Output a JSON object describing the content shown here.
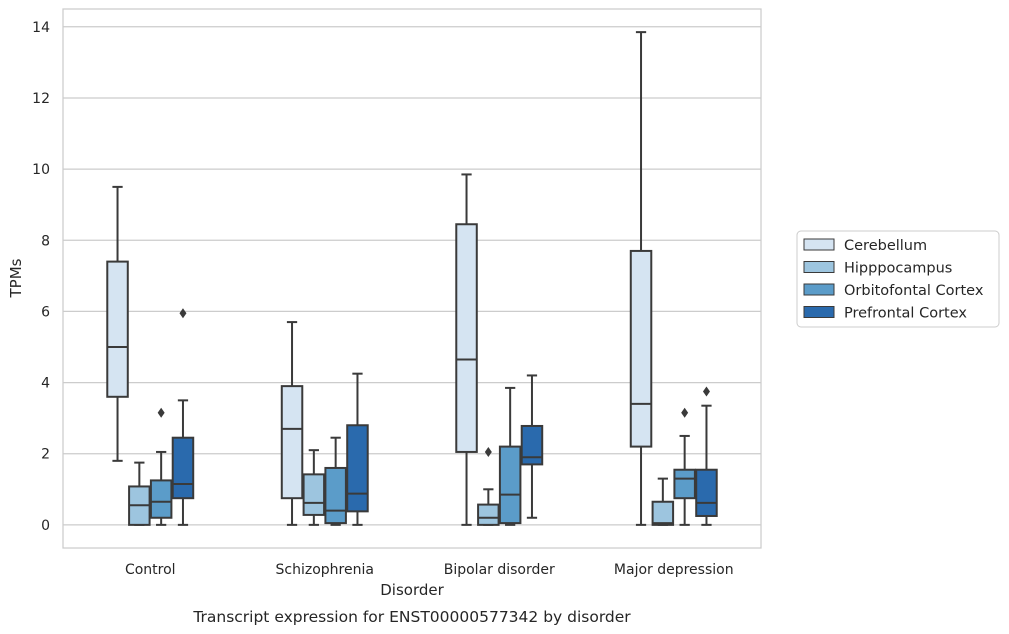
{
  "chart_data": {
    "type": "boxplot",
    "title": "",
    "caption": "Transcript expression for ENST00000577342 by disorder",
    "xlabel": "Disorder",
    "ylabel": "TPMs",
    "ylim": [
      -0.65,
      14.5
    ],
    "yticks": [
      0,
      2,
      4,
      6,
      8,
      10,
      12,
      14
    ],
    "grid": "horizontal",
    "legend_position": "right",
    "categories": [
      "Control",
      "Schizophrenia",
      "Bipolar disorder",
      "Major depression"
    ],
    "series": [
      {
        "name": "Cerebellum",
        "color": "#d5e4f2",
        "boxes": [
          {
            "whisker_low": 1.8,
            "q1": 3.6,
            "median": 5.0,
            "q3": 7.4,
            "whisker_high": 9.5,
            "outliers": []
          },
          {
            "whisker_low": 0.0,
            "q1": 0.75,
            "median": 2.7,
            "q3": 3.9,
            "whisker_high": 5.7,
            "outliers": []
          },
          {
            "whisker_low": 0.0,
            "q1": 2.05,
            "median": 4.65,
            "q3": 8.45,
            "whisker_high": 9.85,
            "outliers": []
          },
          {
            "whisker_low": 0.0,
            "q1": 2.2,
            "median": 3.4,
            "q3": 7.7,
            "whisker_high": 13.85,
            "outliers": []
          }
        ]
      },
      {
        "name": "Hipppocampus",
        "color": "#9dc5df",
        "boxes": [
          {
            "whisker_low": 0.0,
            "q1": 0.0,
            "median": 0.55,
            "q3": 1.08,
            "whisker_high": 1.75,
            "outliers": []
          },
          {
            "whisker_low": 0.0,
            "q1": 0.28,
            "median": 0.62,
            "q3": 1.42,
            "whisker_high": 2.1,
            "outliers": []
          },
          {
            "whisker_low": 0.0,
            "q1": 0.0,
            "median": 0.2,
            "q3": 0.57,
            "whisker_high": 1.0,
            "outliers": [
              2.05
            ]
          },
          {
            "whisker_low": 0.0,
            "q1": 0.0,
            "median": 0.05,
            "q3": 0.65,
            "whisker_high": 1.3,
            "outliers": []
          }
        ]
      },
      {
        "name": "Orbitofontal Cortex",
        "color": "#5b9cc9",
        "boxes": [
          {
            "whisker_low": 0.0,
            "q1": 0.2,
            "median": 0.65,
            "q3": 1.25,
            "whisker_high": 2.05,
            "outliers": [
              3.15
            ]
          },
          {
            "whisker_low": 0.0,
            "q1": 0.05,
            "median": 0.4,
            "q3": 1.6,
            "whisker_high": 2.45,
            "outliers": []
          },
          {
            "whisker_low": 0.0,
            "q1": 0.05,
            "median": 0.85,
            "q3": 2.2,
            "whisker_high": 3.85,
            "outliers": []
          },
          {
            "whisker_low": 0.0,
            "q1": 0.75,
            "median": 1.3,
            "q3": 1.55,
            "whisker_high": 2.5,
            "outliers": [
              3.15
            ]
          }
        ]
      },
      {
        "name": "Prefrontal Cortex",
        "color": "#2a6aad",
        "boxes": [
          {
            "whisker_low": 0.0,
            "q1": 0.75,
            "median": 1.15,
            "q3": 2.45,
            "whisker_high": 3.5,
            "outliers": [
              5.95
            ]
          },
          {
            "whisker_low": 0.0,
            "q1": 0.38,
            "median": 0.88,
            "q3": 2.8,
            "whisker_high": 4.25,
            "outliers": []
          },
          {
            "whisker_low": 0.2,
            "q1": 1.7,
            "median": 1.9,
            "q3": 2.78,
            "whisker_high": 4.2,
            "outliers": []
          },
          {
            "whisker_low": 0.0,
            "q1": 0.25,
            "median": 0.62,
            "q3": 1.55,
            "whisker_high": 3.35,
            "outliers": [
              3.75
            ]
          }
        ]
      }
    ]
  }
}
